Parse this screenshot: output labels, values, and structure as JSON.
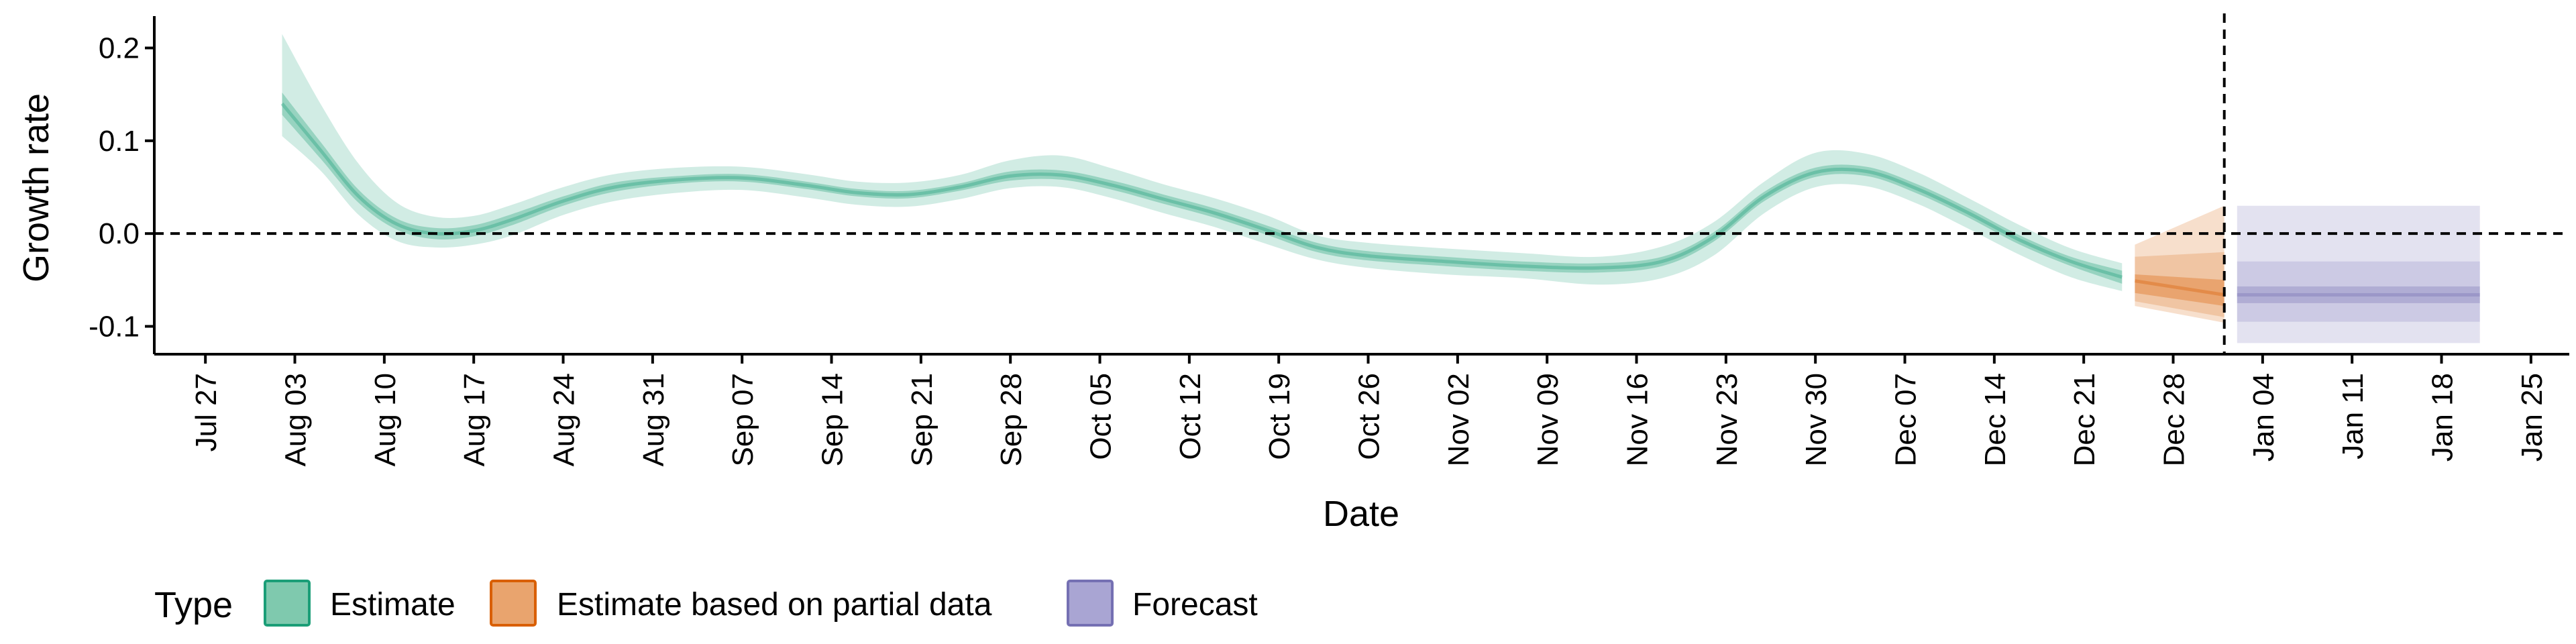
{
  "chart_data": {
    "type": "area",
    "xlabel": "Date",
    "ylabel": "Growth rate",
    "x_ticks": [
      "Jul 27",
      "Aug 03",
      "Aug 10",
      "Aug 17",
      "Aug 24",
      "Aug 31",
      "Sep 07",
      "Sep 14",
      "Sep 21",
      "Sep 28",
      "Oct 05",
      "Oct 12",
      "Oct 19",
      "Oct 26",
      "Nov 02",
      "Nov 09",
      "Nov 16",
      "Nov 23",
      "Nov 30",
      "Dec 07",
      "Dec 14",
      "Dec 21",
      "Dec 28",
      "Jan 04",
      "Jan 11",
      "Jan 18",
      "Jan 25"
    ],
    "y_ticks": [
      0.2,
      0.1,
      0.0,
      -0.1
    ],
    "y_tick_labels": [
      "0.2",
      "0.1",
      "0.0",
      "-0.1"
    ],
    "ylim": [
      -0.13,
      0.23
    ],
    "xlim": [
      "2020-07-23",
      "2021-01-28"
    ],
    "reference_lines": {
      "hline_y": 0.0,
      "vline_date": "2021-01-01",
      "style": "dashed"
    },
    "legend": {
      "title": "Type",
      "position": "bottom",
      "entries": [
        {
          "label": "Estimate",
          "fill": "#7fc9ae",
          "stroke": "#1b9e77"
        },
        {
          "label": "Estimate based on partial data",
          "fill": "#e9a46e",
          "stroke": "#d95f02"
        },
        {
          "label": "Forecast",
          "fill": "#a9a5d3",
          "stroke": "#7570b3"
        }
      ]
    },
    "series": [
      {
        "name": "Estimate",
        "color": "#1b9e77",
        "dates": [
          "2020-08-02",
          "2020-08-05",
          "2020-08-08",
          "2020-08-11",
          "2020-08-14",
          "2020-08-17",
          "2020-08-20",
          "2020-08-24",
          "2020-08-28",
          "2020-09-02",
          "2020-09-07",
          "2020-09-12",
          "2020-09-16",
          "2020-09-20",
          "2020-09-24",
          "2020-09-28",
          "2020-10-02",
          "2020-10-06",
          "2020-10-10",
          "2020-10-14",
          "2020-10-18",
          "2020-10-22",
          "2020-10-26",
          "2020-11-01",
          "2020-11-07",
          "2020-11-13",
          "2020-11-18",
          "2020-11-22",
          "2020-11-26",
          "2020-11-30",
          "2020-12-04",
          "2020-12-08",
          "2020-12-12",
          "2020-12-16",
          "2020-12-20",
          "2020-12-24"
        ],
        "median": [
          0.14,
          0.09,
          0.04,
          0.01,
          0.0,
          0.003,
          0.015,
          0.035,
          0.05,
          0.058,
          0.06,
          0.052,
          0.044,
          0.042,
          0.05,
          0.062,
          0.063,
          0.052,
          0.037,
          0.022,
          0.004,
          -0.015,
          -0.024,
          -0.03,
          -0.035,
          -0.037,
          -0.03,
          -0.004,
          0.04,
          0.066,
          0.067,
          0.048,
          0.022,
          -0.007,
          -0.03,
          -0.047
        ],
        "inner_band": [
          [
            0.128,
            0.152
          ],
          [
            0.081,
            0.099
          ],
          [
            0.033,
            0.047
          ],
          [
            0.004,
            0.016
          ],
          [
            -0.006,
            0.006
          ],
          [
            -0.003,
            0.009
          ],
          [
            0.009,
            0.021
          ],
          [
            0.03,
            0.04
          ],
          [
            0.045,
            0.055
          ],
          [
            0.054,
            0.062
          ],
          [
            0.056,
            0.064
          ],
          [
            0.048,
            0.056
          ],
          [
            0.04,
            0.048
          ],
          [
            0.038,
            0.046
          ],
          [
            0.046,
            0.054
          ],
          [
            0.057,
            0.067
          ],
          [
            0.058,
            0.068
          ],
          [
            0.047,
            0.057
          ],
          [
            0.032,
            0.042
          ],
          [
            0.017,
            0.027
          ],
          [
            -0.001,
            0.009
          ],
          [
            -0.02,
            -0.01
          ],
          [
            -0.029,
            -0.019
          ],
          [
            -0.035,
            -0.025
          ],
          [
            -0.04,
            -0.03
          ],
          [
            -0.042,
            -0.032
          ],
          [
            -0.035,
            -0.025
          ],
          [
            -0.009,
            0.001
          ],
          [
            0.035,
            0.045
          ],
          [
            0.061,
            0.071
          ],
          [
            0.062,
            0.072
          ],
          [
            0.043,
            0.053
          ],
          [
            0.017,
            0.027
          ],
          [
            -0.012,
            -0.002
          ],
          [
            -0.035,
            -0.025
          ],
          [
            -0.054,
            -0.04
          ]
        ],
        "outer_band": [
          [
            0.105,
            0.215
          ],
          [
            0.068,
            0.14
          ],
          [
            0.02,
            0.075
          ],
          [
            -0.008,
            0.033
          ],
          [
            -0.015,
            0.018
          ],
          [
            -0.012,
            0.019
          ],
          [
            -0.002,
            0.031
          ],
          [
            0.02,
            0.05
          ],
          [
            0.035,
            0.064
          ],
          [
            0.044,
            0.071
          ],
          [
            0.047,
            0.072
          ],
          [
            0.039,
            0.064
          ],
          [
            0.031,
            0.056
          ],
          [
            0.029,
            0.055
          ],
          [
            0.037,
            0.063
          ],
          [
            0.049,
            0.079
          ],
          [
            0.05,
            0.084
          ],
          [
            0.038,
            0.07
          ],
          [
            0.022,
            0.053
          ],
          [
            0.007,
            0.038
          ],
          [
            -0.011,
            0.02
          ],
          [
            -0.028,
            -0.002
          ],
          [
            -0.037,
            -0.01
          ],
          [
            -0.044,
            -0.016
          ],
          [
            -0.048,
            -0.021
          ],
          [
            -0.055,
            -0.025
          ],
          [
            -0.048,
            -0.014
          ],
          [
            -0.024,
            0.012
          ],
          [
            0.022,
            0.056
          ],
          [
            0.05,
            0.087
          ],
          [
            0.051,
            0.086
          ],
          [
            0.032,
            0.066
          ],
          [
            0.005,
            0.038
          ],
          [
            -0.023,
            0.009
          ],
          [
            -0.047,
            -0.016
          ],
          [
            -0.062,
            -0.032
          ]
        ]
      },
      {
        "name": "Estimate based on partial data",
        "color": "#d95f02",
        "dates": [
          "2020-12-25",
          "2021-01-01"
        ],
        "median": [
          -0.051,
          -0.066
        ],
        "inner_band": [
          [
            -0.064,
            -0.044
          ],
          [
            -0.078,
            -0.05
          ]
        ],
        "mid_band": [
          [
            -0.073,
            -0.025
          ],
          [
            -0.09,
            -0.02
          ]
        ],
        "outer_band": [
          [
            -0.078,
            -0.012
          ],
          [
            -0.096,
            0.03
          ]
        ]
      },
      {
        "name": "Forecast",
        "color": "#7570b3",
        "dates": [
          "2021-01-02",
          "2021-01-21"
        ],
        "median": [
          -0.066,
          -0.066
        ],
        "inner_band": [
          [
            -0.075,
            -0.057
          ],
          [
            -0.075,
            -0.057
          ]
        ],
        "mid_band": [
          [
            -0.095,
            -0.03
          ],
          [
            -0.095,
            -0.03
          ]
        ],
        "outer_band": [
          [
            -0.118,
            0.03
          ],
          [
            -0.118,
            0.03
          ]
        ]
      }
    ]
  }
}
